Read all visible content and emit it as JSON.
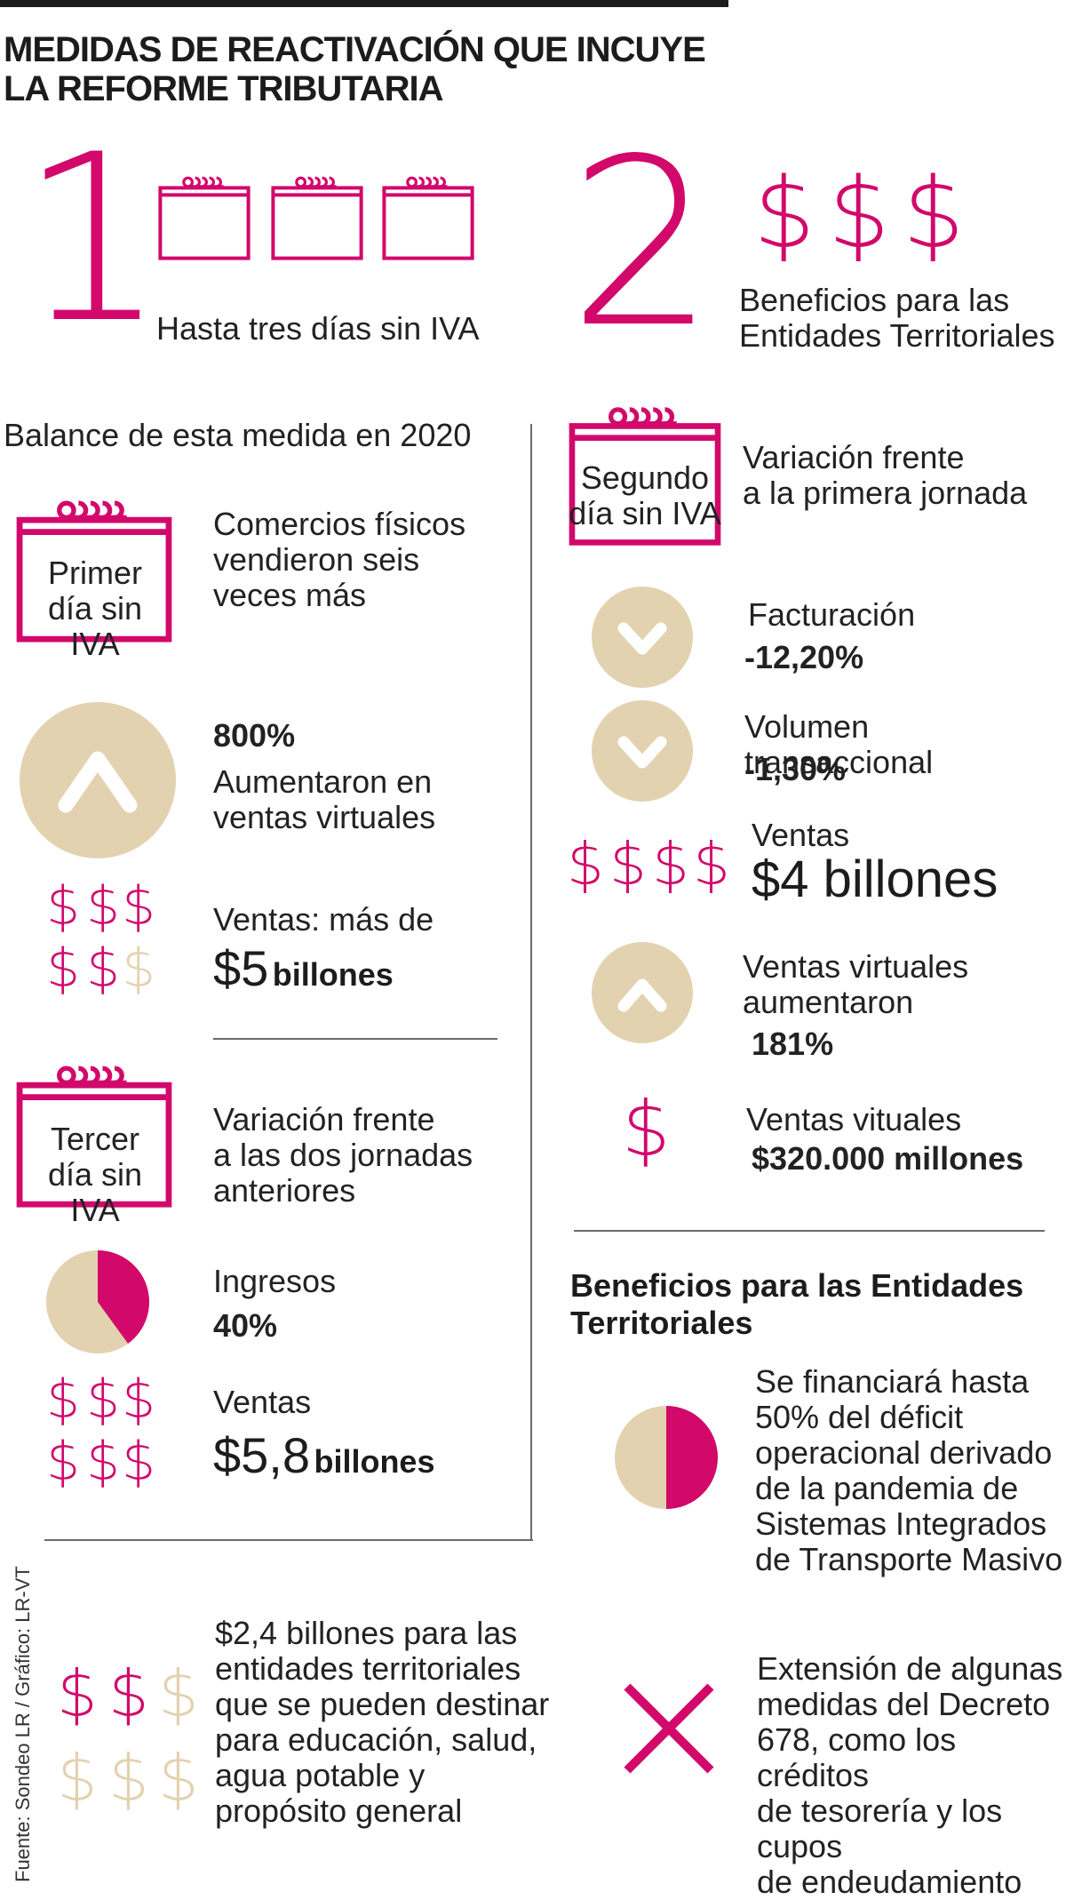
{
  "title_line1": "MEDIDAS DE REACTIVACIÓN QUE INCUYE",
  "title_line2": "LA REFORME TRIBUTARIA",
  "m1": {
    "number": "1",
    "caption": "Hasta tres días sin IVA"
  },
  "m2": {
    "number": "2",
    "caption_line1": "Beneficios para las",
    "caption_line2": "Entidades Territoriales"
  },
  "left": {
    "heading": "Balance de esta medida en 2020",
    "first_day": {
      "label_line1": "Primer",
      "label_line2": "día sin IVA",
      "text_line1": "Comercios físicos",
      "text_line2": "vendieron seis",
      "text_line3": "veces más",
      "pct": "800%",
      "pct_line1": "Aumentaron en",
      "pct_line2": "ventas virtuales",
      "sales_label": "Ventas: más de",
      "sales_amount": "$5",
      "sales_unit": "billones"
    },
    "third_day": {
      "label_line1": "Tercer",
      "label_line2": "día sin IVA",
      "text_line1": "Variación frente",
      "text_line2": "a las dos jornadas",
      "text_line3": "anteriores",
      "income_label": "Ingresos",
      "income_pct": "40%",
      "income_share": 0.4,
      "sales_label": "Ventas",
      "sales_amount": "$5,8",
      "sales_unit": "billones"
    },
    "bottom_text": [
      "$2,4 billones para las",
      "entidades territoriales",
      "que se pueden destinar",
      "para educación, salud,",
      "agua potable y",
      "propósito general"
    ]
  },
  "right": {
    "second_day": {
      "label_line1": "Segundo",
      "label_line2": "día sin IVA",
      "text_line1": "Variación frente",
      "text_line2": "a la primera jornada",
      "billing_label": "Facturación",
      "billing_value": "-12,20%",
      "volume_label": "Volumen transaccional",
      "volume_value": "-1,30%",
      "sales_label": "Ventas",
      "sales_amount": "$4 billones",
      "virtual_line1": "Ventas virtuales",
      "virtual_line2": "aumentaron",
      "virtual_value": "181%",
      "vsales_label": "Ventas vituales",
      "vsales_value": "$320.000 millones"
    },
    "benefits_heading_line1": "Beneficios para las Entidades",
    "benefits_heading_line2": "Territoriales",
    "benefit1": [
      "Se financiará hasta",
      "50% del déficit",
      "operacional derivado",
      "de la pandemia de",
      "Sistemas Integrados",
      "de Transporte Masivo"
    ],
    "benefit1_share": 0.5,
    "benefit2": [
      "Extensión de algunas",
      "medidas del Decreto",
      "678, como los créditos",
      "de tesorería y los cupos",
      "de endeudamiento"
    ]
  },
  "source": "Fuente: Sondeo LR / Gráfico: LR-VT",
  "colors": {
    "accent": "#d2086b",
    "beige": "#e3d2b0",
    "text": "#222222",
    "rule": "#6b6b6b"
  },
  "icons": [
    "calendar-icon",
    "dollar-icon",
    "chevron-up-icon",
    "chevron-down-icon",
    "pie-icon",
    "x-icon"
  ]
}
